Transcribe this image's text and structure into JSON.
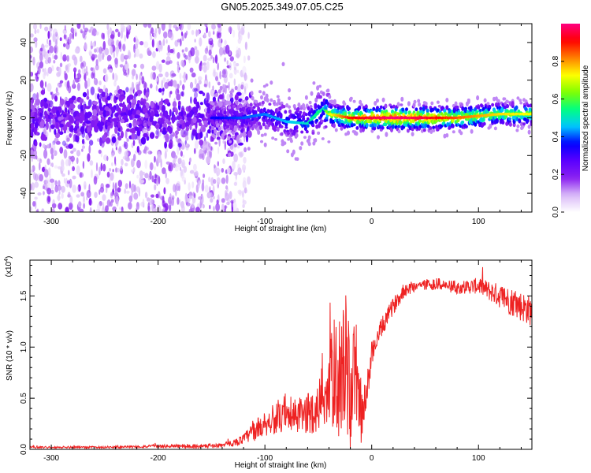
{
  "title": "GN05.2025.349.07.05.C25",
  "chart_data": [
    {
      "type": "heatmap",
      "title": "GN05.2025.349.07.05.C25",
      "xlabel": "Height of straight line (km)",
      "ylabel": "Frequency (Hz)",
      "xlim": [
        -320,
        150
      ],
      "ylim": [
        -50,
        50
      ],
      "x_ticks": [
        -300,
        -200,
        -100,
        0,
        100
      ],
      "x_tick_labels": [
        "-300",
        "-200",
        "-100",
        "0",
        "100"
      ],
      "y_ticks": [
        -40,
        -20,
        0,
        20,
        40
      ],
      "y_tick_labels": [
        "-40",
        "-20",
        "0",
        "20",
        "40"
      ],
      "colorbar": {
        "label": "Normalized spectral amplitude",
        "range": [
          0,
          1
        ],
        "ticks": [
          0.0,
          0.2,
          0.4,
          0.6,
          0.8
        ],
        "tick_labels": [
          "0.0",
          "0.2",
          "0.4",
          "0.6",
          "0.8"
        ],
        "colors": [
          "#ffffff",
          "#d8b8f8",
          "#8a20f0",
          "#5a00ff",
          "#0000ff",
          "#00c8ff",
          "#00ff80",
          "#80ff00",
          "#ffff00",
          "#ff8000",
          "#ff0000",
          "#ff0080"
        ]
      },
      "ridge": {
        "x": [
          -150,
          -120,
          -100,
          -80,
          -60,
          -50,
          -45,
          -40,
          -30,
          -20,
          0,
          20,
          50,
          80,
          100,
          120,
          150
        ],
        "freq": [
          0,
          0,
          2,
          -2,
          -3,
          3,
          5,
          2,
          1,
          0,
          0,
          0,
          0,
          0,
          1,
          2,
          2
        ],
        "amplitude": [
          0.35,
          0.4,
          0.42,
          0.45,
          0.5,
          0.55,
          0.5,
          0.7,
          0.8,
          0.9,
          0.95,
          1.0,
          0.95,
          0.85,
          0.8,
          0.75,
          0.72
        ]
      },
      "noise_region": {
        "x_from": -320,
        "x_to": -130,
        "amplitude": 0.15
      }
    },
    {
      "type": "line",
      "xlabel": "Height of straight line (km)",
      "ylabel": "SNR (10 * v/v)",
      "y_multiplier": "(x10",
      "y_multiplier_exp": "4",
      "y_multiplier_close": ")",
      "xlim": [
        -320,
        150
      ],
      "ylim": [
        0,
        1.85
      ],
      "x_ticks": [
        -300,
        -200,
        -100,
        0,
        100
      ],
      "x_tick_labels": [
        "-300",
        "-200",
        "-100",
        "0",
        "100"
      ],
      "y_ticks": [
        0.0,
        0.5,
        1.0,
        1.5
      ],
      "y_tick_labels": [
        "0.0",
        "0.5",
        "1.0",
        "1.5"
      ],
      "series": [
        {
          "name": "SNR",
          "color": "#ee2222",
          "x": [
            -320,
            -280,
            -240,
            -200,
            -160,
            -140,
            -130,
            -120,
            -110,
            -100,
            -90,
            -80,
            -70,
            -60,
            -50,
            -45,
            -40,
            -35,
            -30,
            -25,
            -20,
            -15,
            -10,
            -5,
            0,
            10,
            20,
            30,
            40,
            60,
            80,
            100,
            110,
            120,
            130,
            140,
            150
          ],
          "y": [
            0.02,
            0.02,
            0.02,
            0.03,
            0.03,
            0.04,
            0.06,
            0.1,
            0.18,
            0.25,
            0.3,
            0.3,
            0.32,
            0.35,
            0.4,
            0.6,
            0.55,
            0.75,
            0.7,
            0.9,
            0.5,
            0.8,
            0.3,
            0.5,
            0.95,
            1.2,
            1.4,
            1.55,
            1.6,
            1.62,
            1.58,
            1.6,
            1.55,
            1.5,
            1.45,
            1.4,
            1.35
          ],
          "noise": [
            0.01,
            0.01,
            0.01,
            0.015,
            0.02,
            0.02,
            0.03,
            0.05,
            0.1,
            0.12,
            0.15,
            0.15,
            0.18,
            0.2,
            0.25,
            0.4,
            0.45,
            0.55,
            0.6,
            0.7,
            0.6,
            0.55,
            0.25,
            0.2,
            0.12,
            0.1,
            0.08,
            0.07,
            0.06,
            0.06,
            0.06,
            0.08,
            0.1,
            0.12,
            0.14,
            0.15,
            0.15
          ]
        }
      ]
    }
  ]
}
